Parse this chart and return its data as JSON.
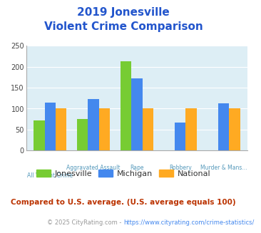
{
  "title_line1": "2019 Jonesville",
  "title_line2": "Violent Crime Comparison",
  "categories": [
    "All Violent Crime",
    "Aggravated Assault",
    "Rape",
    "Robbery",
    "Murder & Mans..."
  ],
  "cat_top": [
    "",
    "Aggravated Assault",
    "Rape",
    "Robbery",
    "Murder & Mans..."
  ],
  "cat_bot": [
    "All Violent Crime",
    "",
    "",
    "",
    ""
  ],
  "series": {
    "Jonesville": [
      72,
      75,
      213,
      0,
      0
    ],
    "Michigan": [
      115,
      123,
      172,
      67,
      112
    ],
    "National": [
      100,
      100,
      100,
      100,
      100
    ]
  },
  "colors": {
    "Jonesville": "#77cc33",
    "Michigan": "#4488ee",
    "National": "#ffaa22"
  },
  "ylim": [
    0,
    250
  ],
  "yticks": [
    0,
    50,
    100,
    150,
    200,
    250
  ],
  "bg_color": "#ddeef5",
  "title_color": "#2255cc",
  "axis_label_color": "#5599bb",
  "footer_text": "Compared to U.S. average. (U.S. average equals 100)",
  "copyright_text": "© 2025 CityRating.com - https://www.cityrating.com/crime-statistics/",
  "footer_color": "#bb3300",
  "copyright_color": "#999999",
  "link_color": "#4488ee"
}
